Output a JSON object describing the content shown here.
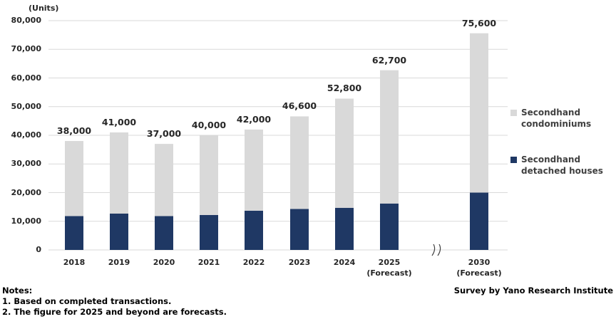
{
  "chart_data": {
    "type": "bar",
    "stacked": true,
    "unit_label": "(Units)",
    "categories": [
      "2018",
      "2019",
      "2020",
      "2021",
      "2022",
      "2023",
      "2024",
      "2025\n(Forecast)",
      "2030\n(Forecast)"
    ],
    "totals": [
      38000,
      41000,
      37000,
      40000,
      42000,
      46600,
      52800,
      62700,
      75600
    ],
    "total_labels": [
      "38,000",
      "41,000",
      "37,000",
      "40,000",
      "42,000",
      "46,600",
      "52,800",
      "62,700",
      "75,600"
    ],
    "series": [
      {
        "name": "Secondhand detached houses",
        "color": "#1f3864",
        "values": [
          11800,
          12700,
          11800,
          12200,
          13700,
          14300,
          14700,
          16200,
          20000
        ]
      },
      {
        "name": "Secondhand condominiums",
        "color": "#d9d9d9",
        "values": [
          26200,
          28300,
          25200,
          27800,
          28300,
          32300,
          38100,
          46500,
          55600
        ]
      }
    ],
    "ylim": [
      0,
      80000
    ],
    "yticks": [
      "0",
      "10,000",
      "20,000",
      "30,000",
      "40,000",
      "50,000",
      "60,000",
      "70,000",
      "80,000"
    ],
    "grid": true,
    "axis_break_between": [
      "2025",
      "2030"
    ],
    "legend_position": "right"
  },
  "legend": {
    "condominiums": [
      "Secondhand",
      "condominiums"
    ],
    "detached": [
      "Secondhand",
      "detached houses"
    ]
  },
  "notes": {
    "title": "Notes:",
    "lines": [
      "1. Based on completed transactions.",
      "2. The figure for 2025 and beyond are forecasts."
    ]
  },
  "source": "Survey by Yano Research Institute"
}
